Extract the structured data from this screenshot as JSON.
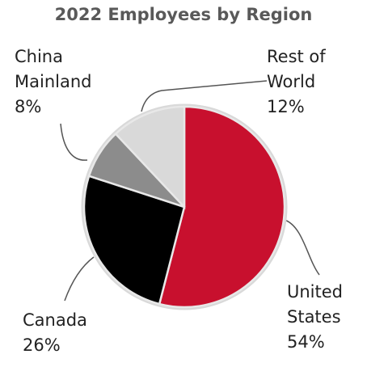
{
  "chart_data": {
    "type": "pie",
    "title": "2022 Employees by Region",
    "categories": [
      "United States",
      "Canada",
      "China Mainland",
      "Rest of World"
    ],
    "values": [
      54,
      26,
      8,
      12
    ],
    "value_labels": [
      "54%",
      "26%",
      "8%",
      "12%"
    ],
    "colors": [
      "#c8102e",
      "#000000",
      "#8c8c8c",
      "#d9d9d9"
    ]
  }
}
